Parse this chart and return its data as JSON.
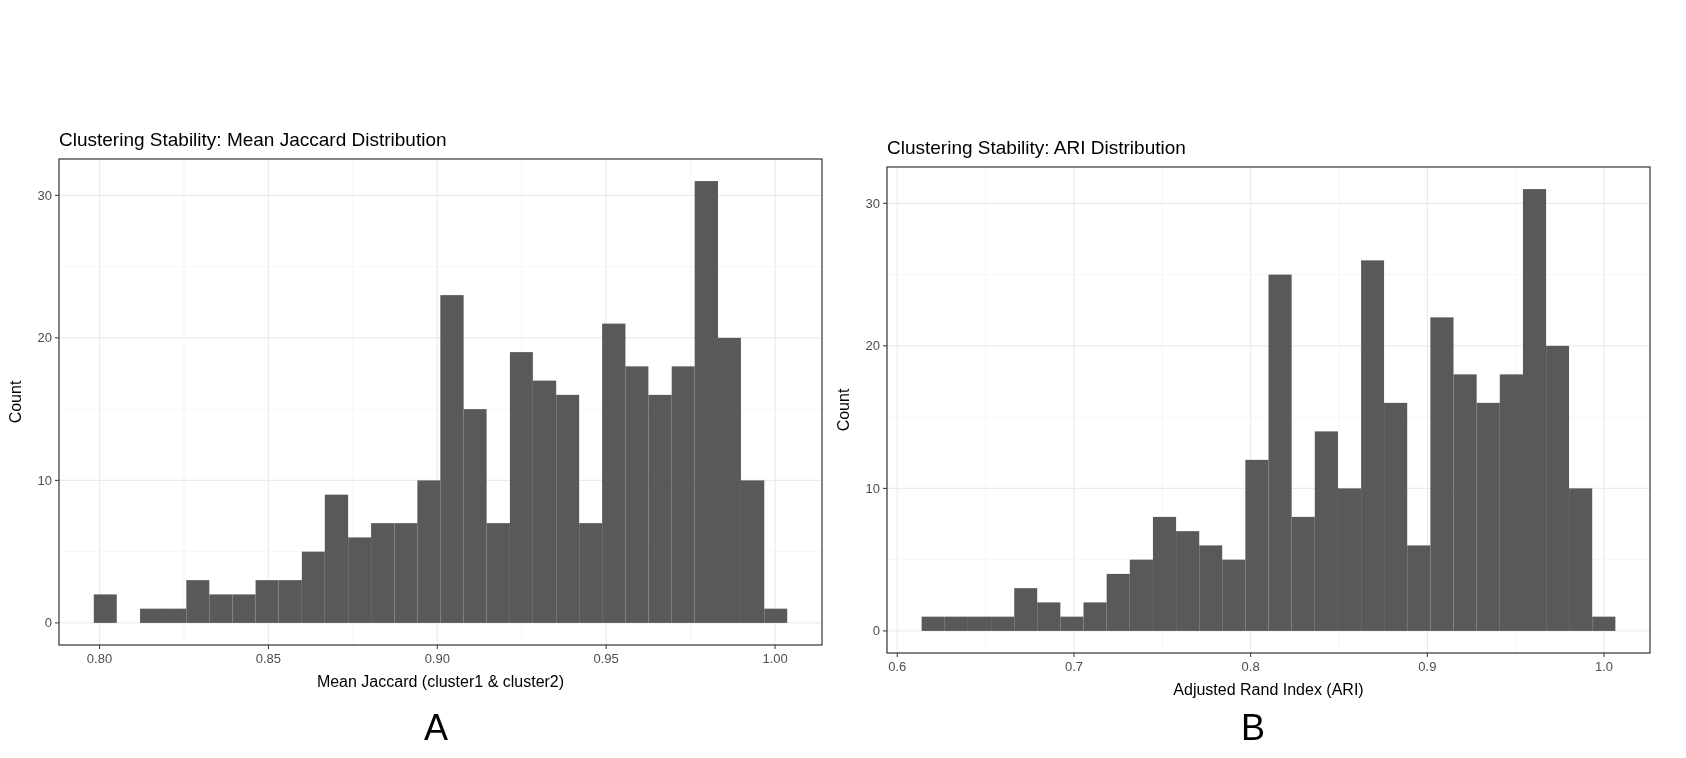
{
  "chart_data": [
    {
      "type": "histogram",
      "title": "Clustering Stability: Mean Jaccard Distribution",
      "xlabel": "Mean Jaccard (cluster1 & cluster2)",
      "ylabel": "Count",
      "color": "#595959",
      "bins": [
        0.7983,
        0.8051,
        0.812,
        0.8188,
        0.8257,
        0.8325,
        0.8394,
        0.8462,
        0.853,
        0.8599,
        0.8667,
        0.8736,
        0.8804,
        0.8873,
        0.8941,
        0.9009,
        0.9078,
        0.9146,
        0.9215,
        0.9283,
        0.9352,
        0.942,
        0.9488,
        0.9557,
        0.9625,
        0.9694,
        0.9762,
        0.9831,
        0.9899,
        0.9968,
        1.0036
      ],
      "values": [
        2,
        0,
        1,
        1,
        3,
        2,
        2,
        3,
        3,
        5,
        9,
        6,
        7,
        7,
        10,
        23,
        15,
        7,
        19,
        17,
        16,
        7,
        21,
        18,
        16,
        18,
        31,
        20,
        10,
        1
      ],
      "xlim": [
        0.788,
        1.0139
      ],
      "xticks": [
        {
          "value": 0.8,
          "label": "0.80"
        },
        0.85,
        {
          "value": 0.9,
          "label": "0.90"
        },
        0.95,
        {
          "value": 1.0,
          "label": "1.00"
        }
      ],
      "ylim": [
        -1.55,
        32.55
      ],
      "yticks": [
        0,
        10,
        20,
        30
      ],
      "grid": true,
      "annotations": [
        "A"
      ]
    },
    {
      "type": "histogram",
      "title": "Clustering Stability: ARI Distribution",
      "xlabel": "Adjusted Rand Index (ARI)",
      "ylabel": "Count",
      "color": "#595959",
      "bins": [
        0.6138,
        0.6269,
        0.64,
        0.6531,
        0.6662,
        0.6792,
        0.6923,
        0.7054,
        0.7185,
        0.7316,
        0.7447,
        0.7578,
        0.7709,
        0.7839,
        0.797,
        0.8101,
        0.8232,
        0.8363,
        0.8494,
        0.8625,
        0.8755,
        0.8886,
        0.9017,
        0.9148,
        0.9279,
        0.941,
        0.9541,
        0.9672,
        0.9802,
        0.9933,
        1.0064
      ],
      "values": [
        1,
        1,
        1,
        1,
        3,
        2,
        1,
        2,
        4,
        5,
        8,
        7,
        6,
        5,
        12,
        25,
        8,
        14,
        10,
        26,
        16,
        6,
        22,
        18,
        16,
        18,
        31,
        20,
        10,
        1
      ],
      "xlim": [
        0.5942,
        1.026
      ],
      "xticks": [
        0.6,
        0.7,
        0.8,
        0.9,
        {
          "value": 1.0,
          "label": "1.0"
        }
      ],
      "ylim": [
        -1.55,
        32.55
      ],
      "yticks": [
        0,
        10,
        20,
        30
      ],
      "grid": true,
      "annotations": [
        "B"
      ]
    }
  ]
}
